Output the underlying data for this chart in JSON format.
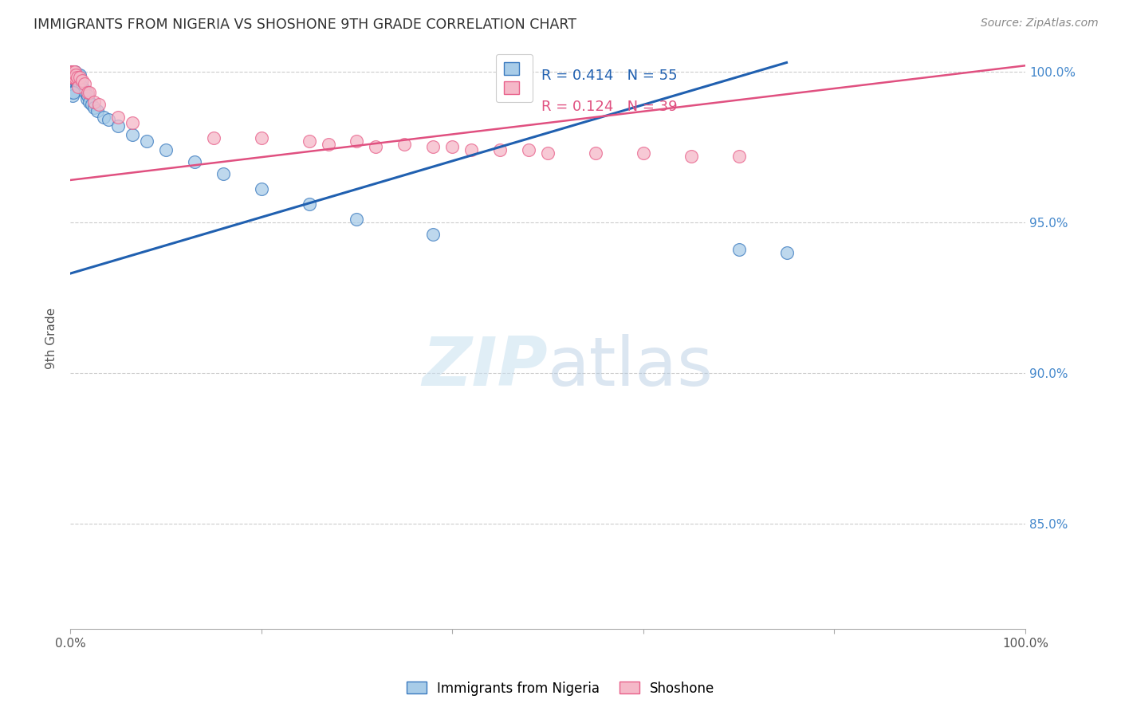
{
  "title": "IMMIGRANTS FROM NIGERIA VS SHOSHONE 9TH GRADE CORRELATION CHART",
  "source": "Source: ZipAtlas.com",
  "ylabel": "9th Grade",
  "watermark_zip": "ZIP",
  "watermark_atlas": "atlas",
  "legend_blue_r": "0.414",
  "legend_blue_n": "55",
  "legend_pink_r": "0.124",
  "legend_pink_n": "39",
  "legend_label1": "Immigrants from Nigeria",
  "legend_label2": "Shoshone",
  "blue_color": "#a8cce8",
  "pink_color": "#f5b8c8",
  "blue_edge_color": "#3a7abf",
  "pink_edge_color": "#e8608a",
  "blue_line_color": "#2060b0",
  "pink_line_color": "#e05080",
  "ytick_values": [
    0.85,
    0.9,
    0.95,
    1.0
  ],
  "ytick_labels": [
    "85.0%",
    "90.0%",
    "95.0%",
    "100.0%"
  ],
  "xlim": [
    0.0,
    1.0
  ],
  "ylim": [
    0.815,
    1.008
  ],
  "blue_x": [
    0.001,
    0.001,
    0.001,
    0.001,
    0.001,
    0.002,
    0.002,
    0.002,
    0.002,
    0.003,
    0.003,
    0.003,
    0.004,
    0.004,
    0.004,
    0.005,
    0.005,
    0.005,
    0.006,
    0.006,
    0.007,
    0.007,
    0.008,
    0.008,
    0.009,
    0.01,
    0.01,
    0.011,
    0.012,
    0.013,
    0.015,
    0.016,
    0.017,
    0.018,
    0.02,
    0.022,
    0.025,
    0.028,
    0.035,
    0.04,
    0.05,
    0.065,
    0.08,
    0.1,
    0.13,
    0.16,
    0.2,
    0.25,
    0.3,
    0.38,
    0.7,
    0.75,
    0.001,
    0.002,
    0.003
  ],
  "blue_y": [
    1.0,
    0.999,
    0.999,
    0.998,
    0.997,
    1.0,
    0.999,
    0.998,
    0.997,
    1.0,
    0.999,
    0.997,
    1.0,
    0.998,
    0.996,
    1.0,
    0.999,
    0.997,
    0.999,
    0.997,
    0.999,
    0.996,
    0.999,
    0.996,
    0.998,
    0.999,
    0.996,
    0.997,
    0.995,
    0.994,
    0.994,
    0.993,
    0.991,
    0.992,
    0.99,
    0.989,
    0.988,
    0.987,
    0.985,
    0.984,
    0.982,
    0.979,
    0.977,
    0.974,
    0.97,
    0.966,
    0.961,
    0.956,
    0.951,
    0.946,
    0.941,
    0.94,
    0.993,
    0.992,
    0.993
  ],
  "pink_x": [
    0.001,
    0.001,
    0.001,
    0.002,
    0.002,
    0.003,
    0.003,
    0.004,
    0.005,
    0.005,
    0.006,
    0.007,
    0.008,
    0.01,
    0.012,
    0.015,
    0.018,
    0.02,
    0.025,
    0.03,
    0.05,
    0.065,
    0.15,
    0.2,
    0.25,
    0.27,
    0.3,
    0.32,
    0.35,
    0.38,
    0.4,
    0.42,
    0.45,
    0.48,
    0.5,
    0.55,
    0.6,
    0.65,
    0.7
  ],
  "pink_y": [
    1.0,
    0.999,
    0.998,
    1.0,
    0.998,
    1.0,
    0.998,
    0.999,
    1.0,
    0.998,
    0.999,
    0.998,
    0.995,
    0.998,
    0.997,
    0.996,
    0.993,
    0.993,
    0.99,
    0.989,
    0.985,
    0.983,
    0.978,
    0.978,
    0.977,
    0.976,
    0.977,
    0.975,
    0.976,
    0.975,
    0.975,
    0.974,
    0.974,
    0.974,
    0.973,
    0.973,
    0.973,
    0.972,
    0.972
  ],
  "blue_line_x0": 0.0,
  "blue_line_y0": 0.933,
  "blue_line_x1": 0.75,
  "blue_line_y1": 1.003,
  "pink_line_x0": 0.0,
  "pink_line_y0": 0.964,
  "pink_line_x1": 1.0,
  "pink_line_y1": 1.002
}
